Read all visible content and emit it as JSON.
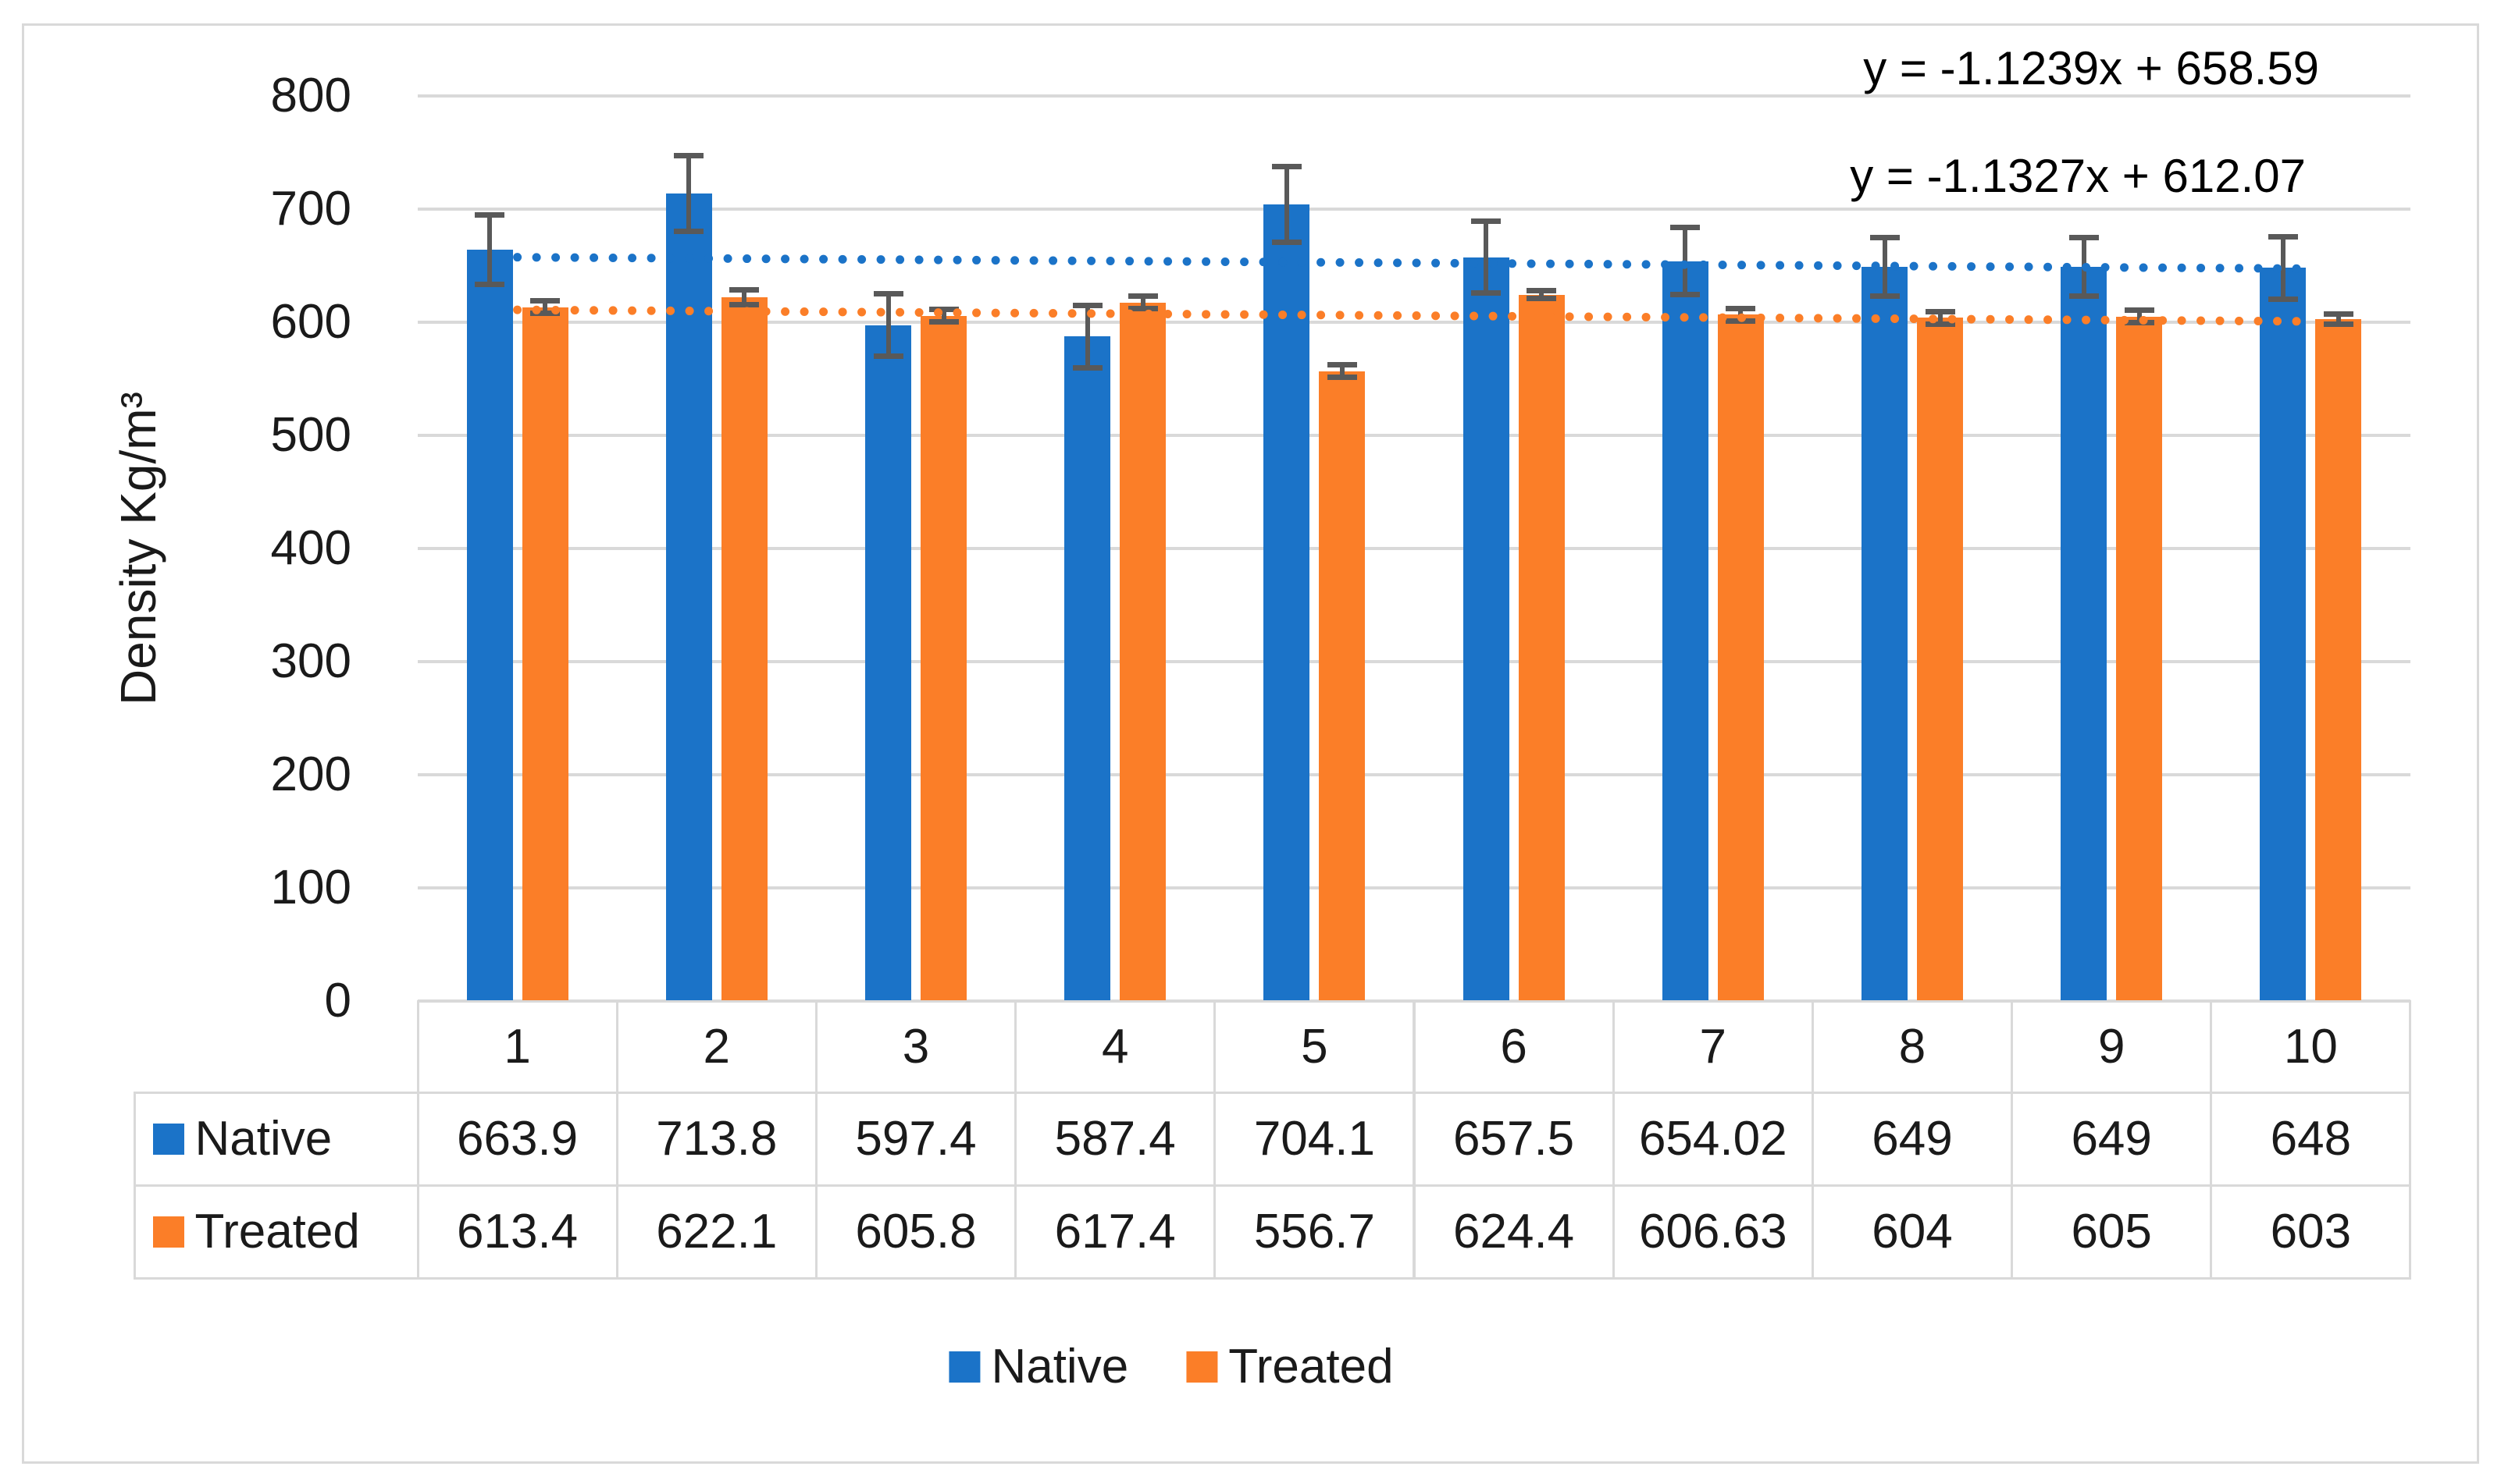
{
  "chart_data": {
    "type": "bar",
    "title": "",
    "ylabel": "Density Kg/m³",
    "xlabel": "",
    "categories": [
      "1",
      "2",
      "3",
      "4",
      "5",
      "6",
      "7",
      "8",
      "9",
      "10"
    ],
    "series": [
      {
        "name": "Native",
        "color": "#1B73C8",
        "values": [
          663.9,
          713.8,
          597.4,
          587.4,
          704.1,
          657.5,
          654.02,
          649,
          649,
          648
        ],
        "error_bars": [
          33,
          36,
          30,
          30,
          36,
          34,
          32,
          28,
          28,
          30
        ]
      },
      {
        "name": "Treated",
        "color": "#FB7E28",
        "values": [
          613.4,
          622.1,
          605.8,
          617.4,
          556.7,
          624.4,
          606.63,
          604,
          605,
          603
        ],
        "error_bars": [
          8,
          9,
          8,
          8,
          8,
          6,
          8,
          8,
          8,
          7
        ]
      }
    ],
    "ylim": [
      0,
      800
    ],
    "ytick_interval": 100,
    "yticks": [
      "0",
      "100",
      "200",
      "300",
      "400",
      "500",
      "600",
      "700",
      "800"
    ],
    "grid": true,
    "gridline_color": "#D9D9D9",
    "error_bar_color": "#595959",
    "legend_position": "bottom",
    "trendlines": [
      {
        "series": "Native",
        "label": "y = -1.1239x + 658.59",
        "slope": -1.1239,
        "intercept": 658.59,
        "color": "#1B73C8",
        "style": "dotted"
      },
      {
        "series": "Treated",
        "label": "y = -1.1327x + 612.07",
        "slope": -1.1327,
        "intercept": 612.07,
        "color": "#FB7E28",
        "style": "dotted"
      }
    ]
  },
  "data_table": {
    "category_header": [
      "1",
      "2",
      "3",
      "4",
      "5",
      "6",
      "7",
      "8",
      "9",
      "10"
    ],
    "rows": [
      {
        "label": "Native",
        "swatch_color": "#1B73C8",
        "cells": [
          "663.9",
          "713.8",
          "597.4",
          "587.4",
          "704.1",
          "657.5",
          "654.02",
          "649",
          "649",
          "648"
        ]
      },
      {
        "label": "Treated",
        "swatch_color": "#FB7E28",
        "cells": [
          "613.4",
          "622.1",
          "605.8",
          "617.4",
          "556.7",
          "624.4",
          "606.63",
          "604",
          "605",
          "603"
        ]
      }
    ]
  },
  "legend": {
    "items": [
      {
        "label": "Native",
        "color": "#1B73C8"
      },
      {
        "label": "Treated",
        "color": "#FB7E28"
      }
    ]
  },
  "colors": {
    "background": "#FFFFFF",
    "border": "#D9D9D9",
    "text": "#1A1A1A"
  }
}
